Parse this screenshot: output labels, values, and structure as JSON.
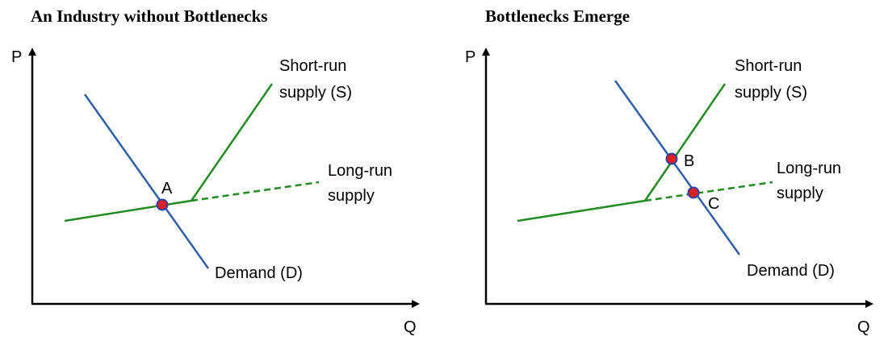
{
  "panels": [
    {
      "title": "An Industry without Bottlenecks",
      "y_axis_label": "P",
      "x_axis_label": "Q",
      "short_run_supply_label": [
        "Short-run",
        "supply (S)"
      ],
      "long_run_supply_label": [
        "Long-run",
        "supply"
      ],
      "demand_label": "Demand (D)",
      "points": [
        "A"
      ]
    },
    {
      "title": "Bottlenecks Emerge",
      "y_axis_label": "P",
      "x_axis_label": "Q",
      "short_run_supply_label": [
        "Short-run",
        "supply (S)"
      ],
      "long_run_supply_label": [
        "Long-run",
        "supply"
      ],
      "demand_label": "Demand (D)",
      "points": [
        "B",
        "C"
      ]
    }
  ],
  "colors": {
    "demand": "#2e5fa8",
    "supply": "#228b22",
    "point_fill": "#e02020",
    "point_stroke": "#2e3f9e",
    "axis": "#000000"
  }
}
